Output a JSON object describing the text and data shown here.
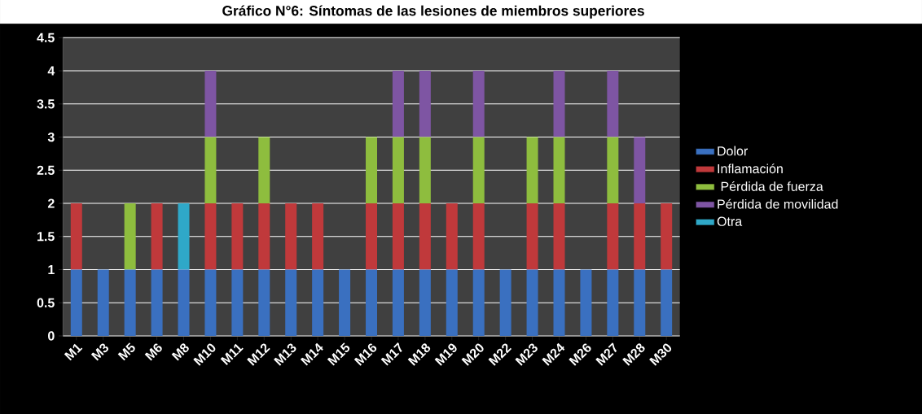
{
  "chart_data": {
    "type": "bar",
    "stacked": true,
    "title": "Gráfico N°6: Síntomas de las lesiones de miembros superiores",
    "categories": [
      "M1",
      "M3",
      "M5",
      "M6",
      "M8",
      "M10",
      "M11",
      "M12",
      "M13",
      "M14",
      "M15",
      "M16",
      "M17",
      "M18",
      "M19",
      "M20",
      "M22",
      "M23",
      "M24",
      "M26",
      "M27",
      "M28",
      "M30"
    ],
    "series": [
      {
        "name": "Dolor",
        "color": "#3a70c0",
        "values": [
          1,
          1,
          1,
          1,
          1,
          1,
          1,
          1,
          1,
          1,
          1,
          1,
          1,
          1,
          1,
          1,
          1,
          1,
          1,
          1,
          1,
          1,
          1
        ]
      },
      {
        "name": "Inflamación",
        "color": "#c0393b",
        "values": [
          1,
          0,
          0,
          1,
          0,
          1,
          1,
          1,
          1,
          1,
          0,
          1,
          1,
          1,
          1,
          1,
          0,
          1,
          1,
          0,
          1,
          1,
          1
        ]
      },
      {
        "name": " Pérdida de fuerza",
        "color": "#8ebd3e",
        "values": [
          0,
          0,
          1,
          0,
          0,
          1,
          0,
          1,
          0,
          0,
          0,
          1,
          1,
          1,
          0,
          1,
          0,
          1,
          1,
          0,
          1,
          0,
          0
        ]
      },
      {
        "name": "Pérdida de movilidad",
        "color": "#7e55a3",
        "values": [
          0,
          0,
          0,
          0,
          0,
          1,
          0,
          0,
          0,
          0,
          0,
          0,
          1,
          1,
          0,
          1,
          0,
          0,
          1,
          0,
          1,
          1,
          0
        ]
      },
      {
        "name": "Otra",
        "color": "#2fa8c8",
        "values": [
          0,
          0,
          0,
          0,
          1,
          0,
          0,
          0,
          0,
          0,
          0,
          0,
          0,
          0,
          0,
          0,
          0,
          0,
          0,
          0,
          0,
          0,
          0
        ]
      }
    ],
    "ylim": [
      0,
      4.5
    ],
    "yticks": [
      0,
      0.5,
      1,
      1.5,
      2,
      2.5,
      3,
      3.5,
      4,
      4.5
    ],
    "grid": "y",
    "legend": "right"
  }
}
